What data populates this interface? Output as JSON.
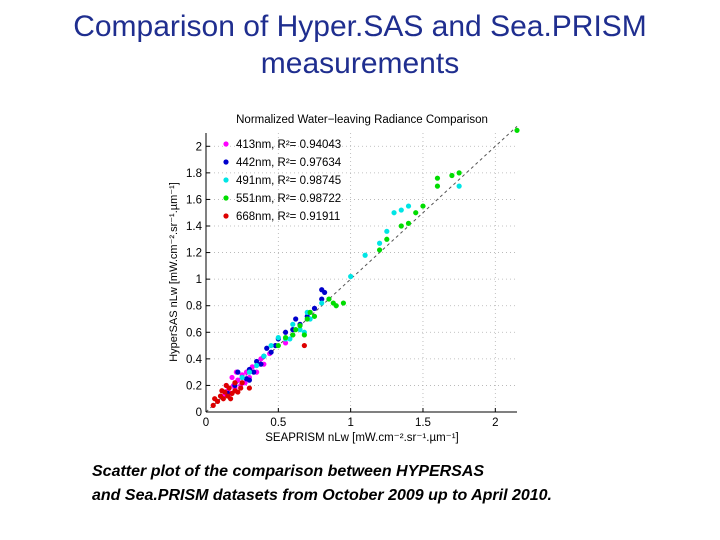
{
  "slide": {
    "title_line1": "Comparison of Hyper.SAS and Sea.PRISM",
    "title_line2": "measurements",
    "caption_line1": "Scatter plot of the comparison between HYPERSAS",
    "caption_line2": "and Sea.PRISM datasets from October 2009 up to April 2010."
  },
  "chart_data": {
    "type": "scatter",
    "title": "Normalized Water−leaving Radiance Comparison",
    "xlabel": "SEAPRISM nLw [mW.cm⁻².sr⁻¹.µm⁻¹]",
    "ylabel": "HyperSAS nLw [mW.cm⁻².sr⁻¹.µm⁻¹]",
    "xlim": [
      0,
      2.15
    ],
    "ylim": [
      0,
      2.1
    ],
    "xticks": [
      0,
      0.5,
      1,
      1.5,
      2
    ],
    "xtick_labels": [
      "0",
      "0.5",
      "1",
      "1.5",
      "2"
    ],
    "yticks": [
      0,
      0.2,
      0.4,
      0.6,
      0.8,
      1,
      1.2,
      1.4,
      1.6,
      1.8,
      2
    ],
    "ytick_labels": [
      "0",
      "0.2",
      "0.4",
      "0.6",
      "0.8",
      "1",
      "1.2",
      "1.4",
      "1.6",
      "1.8",
      "2"
    ],
    "grid": true,
    "legend_position": "top-left",
    "reference_line": {
      "style": "dashed",
      "from": [
        0,
        0
      ],
      "to": [
        2.15,
        2.15
      ]
    },
    "series": [
      {
        "name": "413nm, R²= 0.94043",
        "color": "#ff00ff",
        "points": [
          [
            0.12,
            0.12
          ],
          [
            0.15,
            0.16
          ],
          [
            0.17,
            0.14
          ],
          [
            0.19,
            0.2
          ],
          [
            0.2,
            0.18
          ],
          [
            0.22,
            0.24
          ],
          [
            0.24,
            0.2
          ],
          [
            0.25,
            0.28
          ],
          [
            0.27,
            0.22
          ],
          [
            0.28,
            0.3
          ],
          [
            0.3,
            0.26
          ],
          [
            0.32,
            0.34
          ],
          [
            0.35,
            0.3
          ],
          [
            0.38,
            0.4
          ],
          [
            0.4,
            0.36
          ],
          [
            0.44,
            0.44
          ],
          [
            0.48,
            0.5
          ],
          [
            0.55,
            0.52
          ],
          [
            0.6,
            0.58
          ],
          [
            0.14,
            0.2
          ],
          [
            0.18,
            0.26
          ],
          [
            0.21,
            0.3
          ],
          [
            0.36,
            0.36
          ]
        ]
      },
      {
        "name": "442nm, R²= 0.97634",
        "color": "#0000cc",
        "points": [
          [
            0.15,
            0.14
          ],
          [
            0.2,
            0.2
          ],
          [
            0.25,
            0.26
          ],
          [
            0.28,
            0.25
          ],
          [
            0.3,
            0.32
          ],
          [
            0.33,
            0.3
          ],
          [
            0.35,
            0.38
          ],
          [
            0.4,
            0.42
          ],
          [
            0.42,
            0.48
          ],
          [
            0.45,
            0.45
          ],
          [
            0.5,
            0.55
          ],
          [
            0.55,
            0.6
          ],
          [
            0.6,
            0.62
          ],
          [
            0.62,
            0.7
          ],
          [
            0.65,
            0.66
          ],
          [
            0.7,
            0.72
          ],
          [
            0.75,
            0.78
          ],
          [
            0.8,
            0.85
          ],
          [
            0.8,
            0.92
          ],
          [
            0.82,
            0.9
          ],
          [
            0.22,
            0.3
          ],
          [
            0.3,
            0.24
          ],
          [
            0.38,
            0.36
          ],
          [
            0.48,
            0.5
          ]
        ]
      },
      {
        "name": "491nm, R²= 0.98745",
        "color": "#00e5e5",
        "points": [
          [
            0.3,
            0.3
          ],
          [
            0.35,
            0.35
          ],
          [
            0.4,
            0.42
          ],
          [
            0.45,
            0.5
          ],
          [
            0.5,
            0.56
          ],
          [
            0.55,
            0.55
          ],
          [
            0.6,
            0.66
          ],
          [
            0.65,
            0.62
          ],
          [
            0.7,
            0.75
          ],
          [
            0.72,
            0.7
          ],
          [
            0.8,
            0.82
          ],
          [
            1.0,
            1.02
          ],
          [
            1.1,
            1.18
          ],
          [
            1.2,
            1.27
          ],
          [
            1.25,
            1.36
          ],
          [
            1.3,
            1.5
          ],
          [
            1.35,
            1.52
          ],
          [
            1.4,
            1.55
          ],
          [
            1.75,
            1.7
          ],
          [
            0.58,
            0.55
          ],
          [
            0.68,
            0.6
          ],
          [
            0.25,
            0.26
          ]
        ]
      },
      {
        "name": "551nm, R²= 0.98722",
        "color": "#00dd00",
        "points": [
          [
            0.5,
            0.5
          ],
          [
            0.55,
            0.56
          ],
          [
            0.6,
            0.58
          ],
          [
            0.65,
            0.65
          ],
          [
            0.7,
            0.7
          ],
          [
            0.72,
            0.75
          ],
          [
            0.75,
            0.72
          ],
          [
            0.85,
            0.85
          ],
          [
            0.88,
            0.82
          ],
          [
            0.9,
            0.8
          ],
          [
            0.95,
            0.82
          ],
          [
            1.2,
            1.22
          ],
          [
            1.25,
            1.3
          ],
          [
            1.35,
            1.4
          ],
          [
            1.4,
            1.42
          ],
          [
            1.45,
            1.5
          ],
          [
            1.5,
            1.55
          ],
          [
            1.6,
            1.7
          ],
          [
            1.6,
            1.76
          ],
          [
            1.7,
            1.78
          ],
          [
            1.75,
            1.8
          ],
          [
            2.15,
            2.12
          ],
          [
            0.62,
            0.62
          ],
          [
            0.68,
            0.58
          ]
        ]
      },
      {
        "name": "668nm, R²= 0.91911",
        "color": "#dd0000",
        "points": [
          [
            0.05,
            0.05
          ],
          [
            0.08,
            0.08
          ],
          [
            0.1,
            0.12
          ],
          [
            0.12,
            0.1
          ],
          [
            0.13,
            0.15
          ],
          [
            0.15,
            0.12
          ],
          [
            0.16,
            0.18
          ],
          [
            0.18,
            0.14
          ],
          [
            0.2,
            0.16
          ],
          [
            0.22,
            0.15
          ],
          [
            0.24,
            0.18
          ],
          [
            0.25,
            0.22
          ],
          [
            0.3,
            0.18
          ],
          [
            0.11,
            0.16
          ],
          [
            0.14,
            0.2
          ],
          [
            0.2,
            0.22
          ],
          [
            0.68,
            0.5
          ],
          [
            0.06,
            0.1
          ],
          [
            0.17,
            0.1
          ]
        ]
      }
    ]
  }
}
